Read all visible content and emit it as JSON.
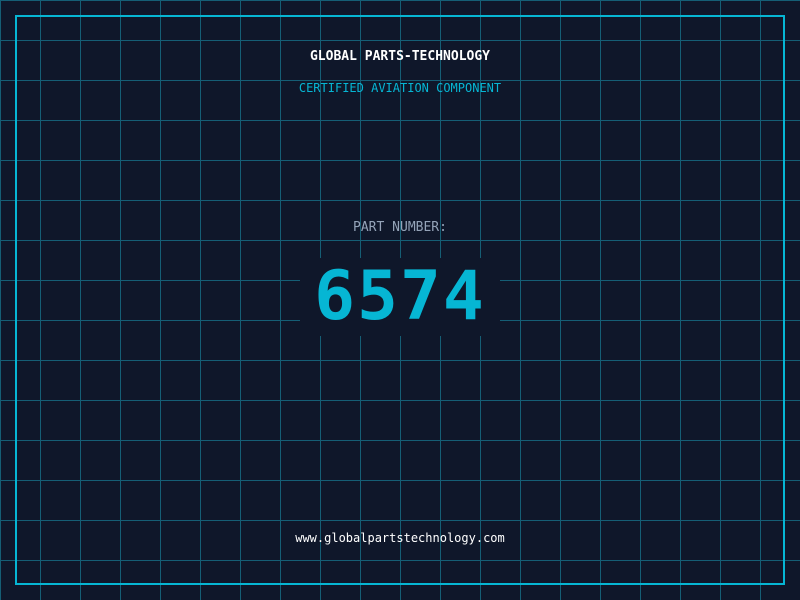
{
  "company": "GLOBAL PARTS-TECHNOLOGY",
  "subtitle": "CERTIFIED AVIATION COMPONENT",
  "part_label": "PART NUMBER:",
  "part_number": "6574",
  "website": "www.globalpartstechnology.com",
  "colors": {
    "accent": "#06b6d4",
    "background": "#0f172a",
    "grid": "#155e75"
  }
}
